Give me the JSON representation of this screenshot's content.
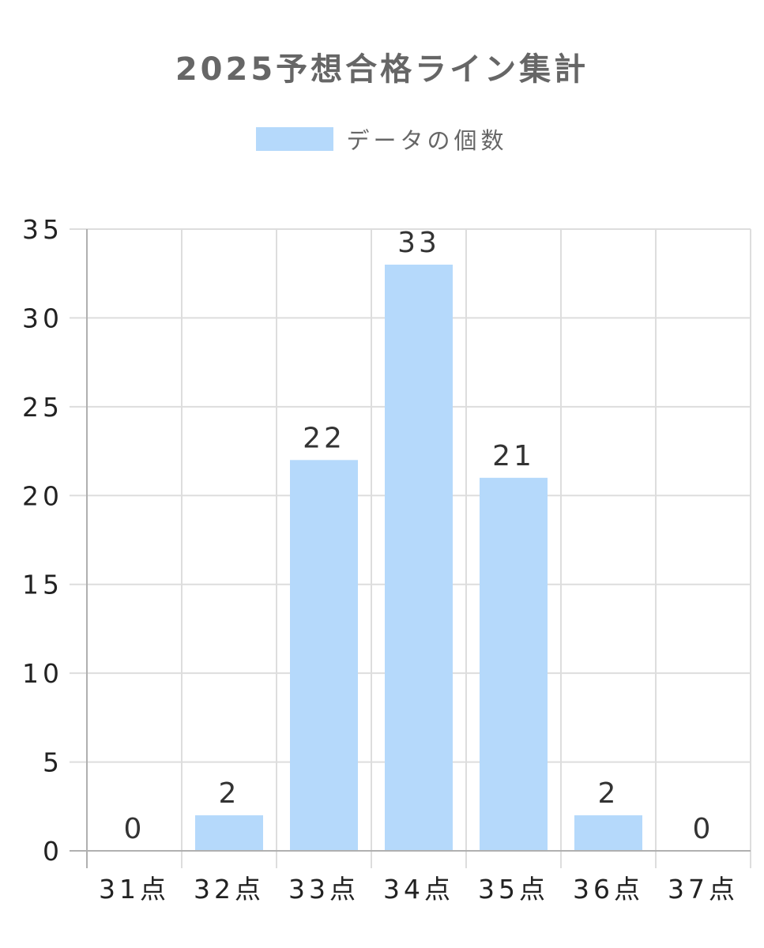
{
  "chart_data": {
    "type": "bar",
    "title": "2025予想合格ライン集計",
    "categories": [
      "31点",
      "32点",
      "33点",
      "34点",
      "35点",
      "36点",
      "37点"
    ],
    "series": [
      {
        "name": "データの個数",
        "values": [
          0,
          2,
          22,
          33,
          21,
          2,
          0
        ],
        "color": "#b5d9fb"
      }
    ],
    "ylim": [
      0,
      35
    ],
    "yticks": [
      0,
      5,
      10,
      15,
      20,
      25,
      30,
      35
    ],
    "grid": true,
    "legend_position": "top",
    "data_labels": true
  }
}
